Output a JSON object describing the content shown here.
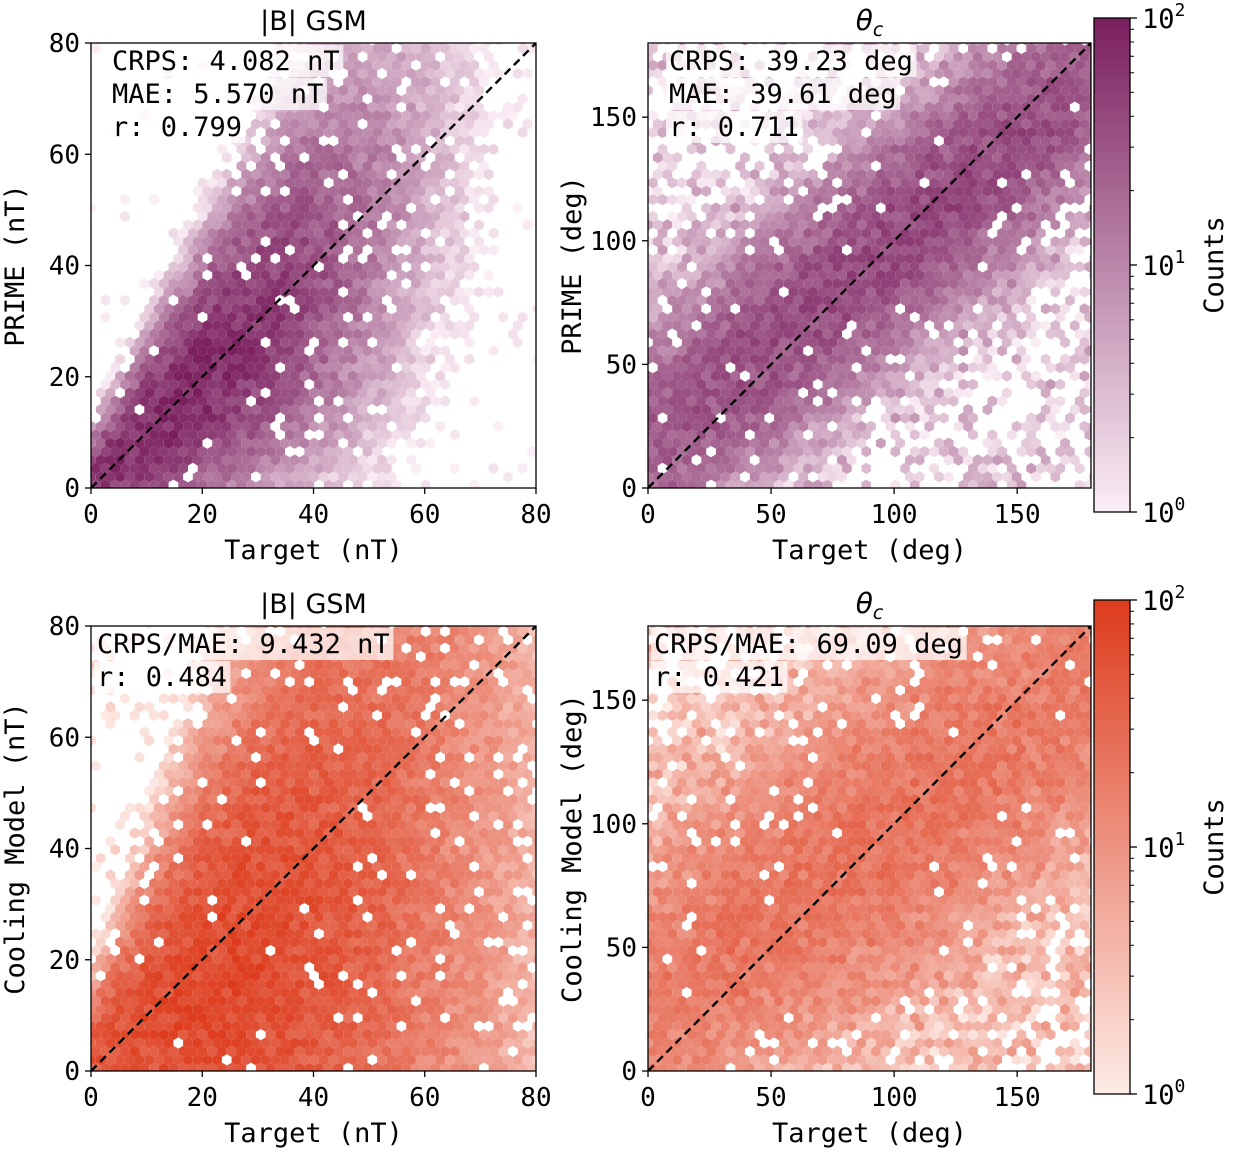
{
  "colorbar_label": "Counts",
  "colorbar_ticks": [
    {
      "value": 1,
      "label": "10",
      "exp": "0"
    },
    {
      "value": 10,
      "label": "10",
      "exp": "1"
    },
    {
      "value": 100,
      "label": "10",
      "exp": "2"
    }
  ],
  "colormaps": {
    "purple": {
      "low": "#fbeef5",
      "high": "#7a1f5e"
    },
    "red": {
      "low": "#fdebe6",
      "high": "#dd3c1d"
    }
  },
  "reference_line": "y = x",
  "chart_data": [
    {
      "type": "heatmap",
      "subtype": "hexbin",
      "title": "|B| GSM",
      "xlabel": "Target (nT)",
      "ylabel": "PRIME (nT)",
      "xlim": [
        0,
        80
      ],
      "ylim": [
        0,
        80
      ],
      "xticks": [
        0,
        20,
        40,
        60,
        80
      ],
      "yticks": [
        0,
        20,
        40,
        60,
        80
      ],
      "colormap": "purple",
      "annotations": [
        "CRPS: 4.082 nT",
        "MAE: 5.570 nT",
        "r: 0.799"
      ],
      "metrics": {
        "CRPS": 4.082,
        "MAE": 5.57,
        "r": 0.799
      },
      "color_scale": "log",
      "clim": [
        1,
        100
      ],
      "density_model": {
        "slope": 0.95,
        "offset": 0.5,
        "scatter": 4.5,
        "scatter_growth": 0.07,
        "mass": [
          2,
          30
        ],
        "peak": 85,
        "background": 0.05,
        "seed": 11
      }
    },
    {
      "type": "heatmap",
      "subtype": "hexbin",
      "title": "θ",
      "title_sub": "c",
      "xlabel": "Target (deg)",
      "ylabel": "PRIME (deg)",
      "xlim": [
        0,
        180
      ],
      "ylim": [
        0,
        180
      ],
      "xticks": [
        0,
        50,
        100,
        150
      ],
      "yticks": [
        0,
        50,
        100,
        150
      ],
      "colormap": "purple",
      "annotations": [
        "CRPS: 39.23 deg",
        "MAE: 39.61 deg",
        "r: 0.711"
      ],
      "metrics": {
        "CRPS": 39.23,
        "MAE": 39.61,
        "r": 0.711
      },
      "color_scale": "log",
      "clim": [
        1,
        100
      ],
      "colorbar": true,
      "density_model": {
        "slope": 0.8,
        "offset": 20,
        "scatter": 26,
        "scatter_growth": 0.0,
        "mass": [
          20,
          170
        ],
        "peak": 40,
        "background": 0.25,
        "seed": 23
      }
    },
    {
      "type": "heatmap",
      "subtype": "hexbin",
      "title": "|B| GSM",
      "xlabel": "Target (nT)",
      "ylabel": "Cooling Model (nT)",
      "xlim": [
        0,
        80
      ],
      "ylim": [
        0,
        80
      ],
      "xticks": [
        0,
        20,
        40,
        60,
        80
      ],
      "yticks": [
        0,
        20,
        40,
        60,
        80
      ],
      "colormap": "red",
      "annotations": [
        "CRPS/MAE: 9.432 nT",
        "r: 0.484"
      ],
      "metrics": {
        "CRPS_MAE": 9.432,
        "r": 0.484
      },
      "color_scale": "log",
      "clim": [
        1,
        100
      ],
      "density_model": {
        "slope": 0.62,
        "offset": 2.5,
        "scatter": 6,
        "scatter_growth": 0.12,
        "mass": [
          2,
          40
        ],
        "peak": 75,
        "background": 0.08,
        "seed": 37
      }
    },
    {
      "type": "heatmap",
      "subtype": "hexbin",
      "title": "θ",
      "title_sub": "c",
      "xlabel": "Target (deg)",
      "ylabel": "Cooling Model (deg)",
      "xlim": [
        0,
        180
      ],
      "ylim": [
        0,
        180
      ],
      "xticks": [
        0,
        50,
        100,
        150
      ],
      "yticks": [
        0,
        50,
        100,
        150
      ],
      "colormap": "red",
      "annotations": [
        "CRPS/MAE: 69.09 deg",
        "r: 0.421"
      ],
      "metrics": {
        "CRPS_MAE": 69.09,
        "r": 0.421
      },
      "color_scale": "log",
      "clim": [
        1,
        100
      ],
      "colorbar": true,
      "density_model": {
        "slope": 0.7,
        "offset": 30,
        "scatter": 38,
        "scatter_growth": 0.0,
        "mass": [
          5,
          175
        ],
        "peak": 22,
        "background": 0.35,
        "seed": 51
      }
    }
  ]
}
